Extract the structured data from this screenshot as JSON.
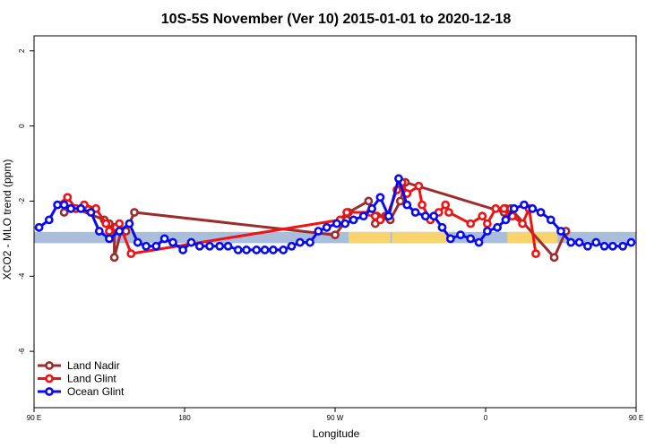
{
  "chart_data": {
    "type": "line",
    "title": "10S-5S November (Ver 10)   2015-01-01 to 2020-12-18",
    "xlabel": "Longitude",
    "ylabel": "XCO2 - MLO trend (ppm)",
    "xlim": [
      90,
      450
    ],
    "ylim": [
      -7.5,
      2.4
    ],
    "x_ticks": [
      {
        "value": 90,
        "label": "90 E"
      },
      {
        "value": 180,
        "label": "180"
      },
      {
        "value": 270,
        "label": "90 W"
      },
      {
        "value": 360,
        "label": "0"
      },
      {
        "value": 450,
        "label": "90 E"
      },
      {
        "value": 540,
        "label": "180"
      }
    ],
    "y_ticks": [
      {
        "value": 2,
        "label": "2"
      },
      {
        "value": 0,
        "label": "0"
      },
      {
        "value": -2,
        "label": "-2"
      },
      {
        "value": -4,
        "label": "-4"
      },
      {
        "value": -6,
        "label": "-6"
      }
    ],
    "colors": {
      "ocean_band": "#a8bedb",
      "land_band": "#f7d46d",
      "axis": "#000000"
    },
    "background_band": {
      "y_range": [
        -3.12,
        -2.82
      ],
      "land_segments": [
        [
          278,
          303
        ],
        [
          304,
          338
        ],
        [
          373,
          403
        ]
      ]
    },
    "legend_position": "bottom-left",
    "series": [
      {
        "name": "Land Nadir",
        "color": "#9b2d2d",
        "x": [
          108,
          115,
          132,
          135,
          138,
          138,
          142,
          145,
          150,
          270,
          277,
          278,
          290,
          294,
          295,
          300,
          303,
          309,
          312,
          371,
          372,
          375,
          401,
          408
        ],
        "y": [
          -2.3,
          -2.2,
          -2.5,
          -2.6,
          -2.7,
          -3.5,
          -2.8,
          -2.8,
          -2.3,
          -2.9,
          -2.5,
          -2.3,
          -2.0,
          -2.6,
          -2.4,
          -2.4,
          -2.5,
          -2.0,
          -1.5,
          -2.3,
          -2.2,
          -2.2,
          -3.5,
          -2.8
        ]
      },
      {
        "name": "Land Glint",
        "color": "#ef1313",
        "x": [
          104,
          110,
          115,
          120,
          127,
          133,
          135,
          139,
          141,
          148,
          273,
          277,
          291,
          294,
          297,
          301,
          307,
          310,
          313,
          320,
          322,
          327,
          332,
          336,
          338,
          351,
          358,
          361,
          366,
          371,
          374,
          376,
          382,
          386,
          390
        ],
        "y": [
          -2.1,
          -1.9,
          -2.2,
          -2.1,
          -2.2,
          -2.6,
          -2.8,
          -2.7,
          -2.6,
          -3.4,
          -2.5,
          -2.3,
          -2.3,
          -2.4,
          -2.5,
          -2.4,
          -1.7,
          -1.5,
          -1.8,
          -1.6,
          -2.1,
          -2.5,
          -2.3,
          -2.1,
          -2.3,
          -2.6,
          -2.4,
          -2.6,
          -2.2,
          -2.2,
          -2.4,
          -2.4,
          -2.6,
          -2.2,
          -3.4
        ]
      },
      {
        "name": "Ocean Glint",
        "color": "#0a0aee",
        "x": [
          93,
          99,
          104,
          108,
          112,
          118,
          124,
          129,
          135,
          141,
          147,
          152,
          157,
          163,
          168,
          173,
          179,
          184,
          189,
          195,
          201,
          206,
          212,
          217,
          223,
          228,
          233,
          239,
          244,
          249,
          255,
          260,
          265,
          271,
          276,
          281,
          287,
          292,
          297,
          302,
          308,
          313,
          318,
          324,
          329,
          334,
          339,
          345,
          351,
          356,
          361,
          367,
          372,
          377,
          383,
          388,
          393,
          399,
          405,
          411,
          416,
          421,
          426,
          431,
          436,
          442,
          447
        ],
        "y": [
          -2.7,
          -2.5,
          -2.1,
          -2.1,
          -2.2,
          -2.2,
          -2.3,
          -2.8,
          -3.0,
          -2.8,
          -2.6,
          -3.1,
          -3.2,
          -3.2,
          -3.0,
          -3.1,
          -3.3,
          -3.1,
          -3.2,
          -3.2,
          -3.2,
          -3.2,
          -3.3,
          -3.3,
          -3.3,
          -3.3,
          -3.3,
          -3.3,
          -3.2,
          -3.1,
          -3.1,
          -2.8,
          -2.7,
          -2.6,
          -2.6,
          -2.5,
          -2.4,
          -2.2,
          -1.9,
          -2.4,
          -1.4,
          -2.1,
          -2.3,
          -2.4,
          -2.4,
          -2.7,
          -3.0,
          -2.9,
          -3.0,
          -3.1,
          -2.8,
          -2.7,
          -2.5,
          -2.2,
          -2.1,
          -2.2,
          -2.3,
          -2.5,
          -2.8,
          -3.1,
          -3.1,
          -3.2,
          -3.1,
          -3.2,
          -3.2,
          -3.2,
          -3.1
        ]
      }
    ]
  }
}
